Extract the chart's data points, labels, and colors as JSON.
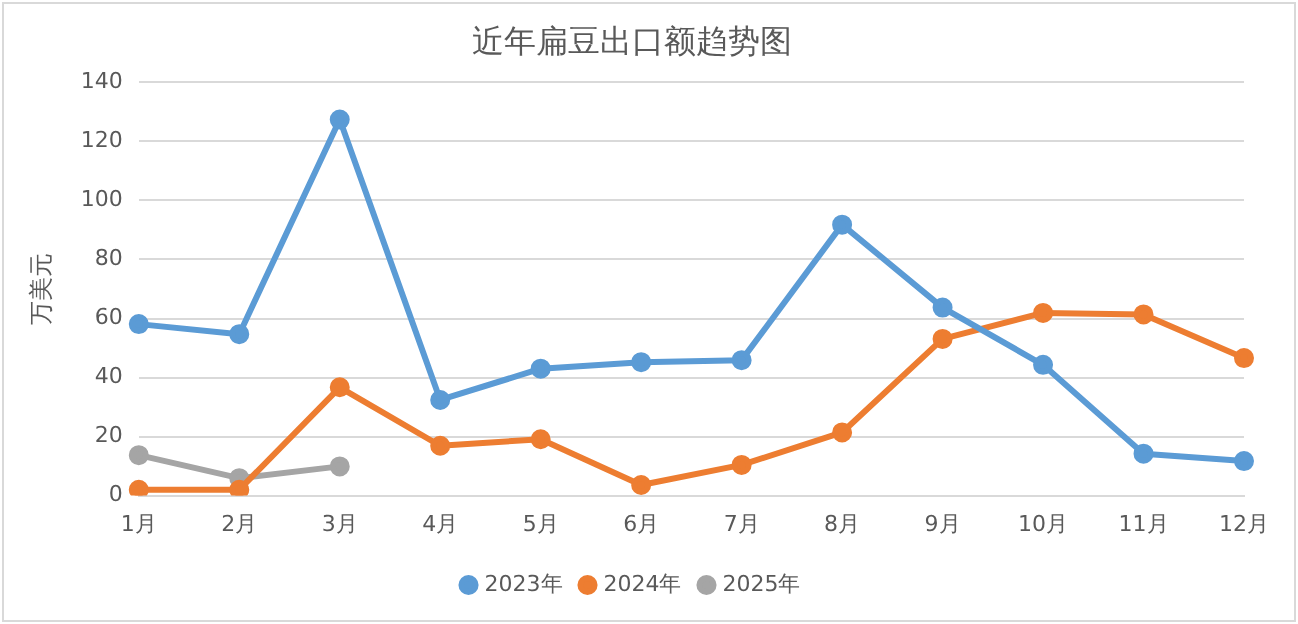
{
  "chart_data": {
    "type": "line",
    "title": "近年扁豆出口额趋势图",
    "ylabel": "万美元",
    "categories": [
      "1月",
      "2月",
      "3月",
      "4月",
      "5月",
      "6月",
      "7月",
      "8月",
      "9月",
      "10月",
      "11月",
      "12月"
    ],
    "series": [
      {
        "name": "2023年",
        "color": "#5b9bd5",
        "values": [
          58.1,
          54.7,
          127.4,
          32.4,
          43,
          45.2,
          45.9,
          91.8,
          63.7,
          44.3,
          14.2,
          11.7
        ]
      },
      {
        "name": "2024年",
        "color": "#ed7d31",
        "values": [
          2,
          2,
          36.7,
          16.9,
          19.1,
          3.6,
          10.4,
          21.4,
          53.1,
          61.9,
          61.4,
          46.6
        ]
      },
      {
        "name": "2025年",
        "color": "#a5a5a5",
        "values": [
          13.7,
          5.9,
          9.9,
          null,
          null,
          null,
          null,
          null,
          null,
          null,
          null,
          null
        ]
      }
    ],
    "ylim": [
      0,
      140
    ],
    "yticks": [
      0,
      20,
      40,
      60,
      80,
      100,
      120,
      140
    ],
    "grid": "y",
    "legend": "bottom",
    "marker": "circle",
    "line_style": "solid"
  }
}
